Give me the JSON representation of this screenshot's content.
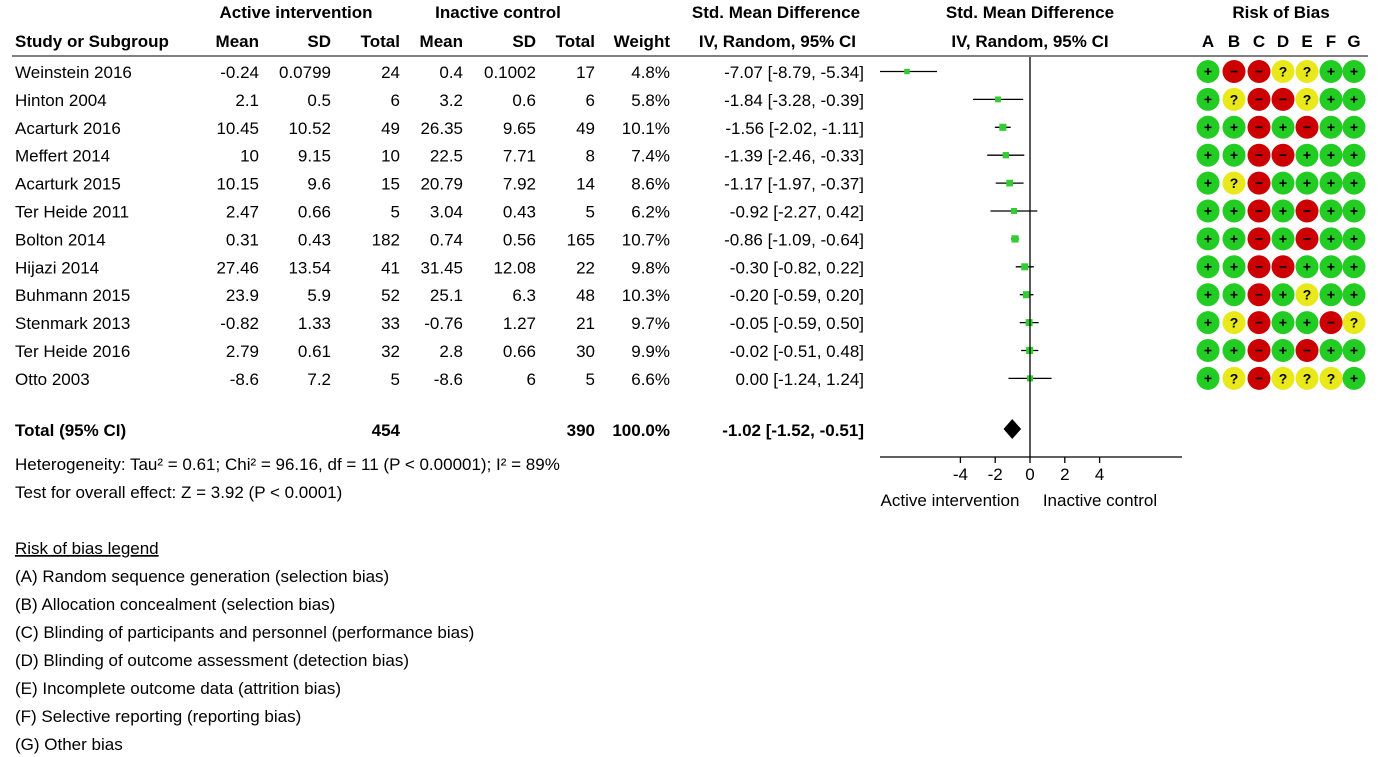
{
  "headers": {
    "group_active": "Active intervention",
    "group_control": "Inactive control",
    "smd_title": "Std. Mean Difference",
    "smd_method": "IV, Random, 95% CI",
    "rob_title": "Risk of Bias",
    "study": "Study or Subgroup",
    "mean": "Mean",
    "sd": "SD",
    "total": "Total",
    "weight": "Weight"
  },
  "rob_domains": [
    "A",
    "B",
    "C",
    "D",
    "E",
    "F",
    "G"
  ],
  "colors": {
    "low": "#22cc22",
    "unclear": "#e8e81a",
    "high": "#cc0000",
    "marker": "#33cc33"
  },
  "chart_data": {
    "type": "forest",
    "xlim": [
      -10,
      10
    ],
    "ticks": [
      "-4",
      "-2",
      "0",
      "2",
      "4"
    ],
    "tick_values": [
      -4,
      -2,
      0,
      2,
      4
    ],
    "xlabel_left": "Active intervention",
    "xlabel_right": "Inactive control",
    "studies": [
      {
        "name": "Weinstein 2016",
        "a_mean": "-0.24",
        "a_sd": "0.0799",
        "a_total": "24",
        "c_mean": "0.4",
        "c_sd": "0.1002",
        "c_total": "17",
        "weight": "4.8%",
        "ci_text": "-7.07 [-8.79, -5.34]",
        "est": -7.07,
        "lo": -8.79,
        "hi": -5.34,
        "w": 4.8,
        "rob": [
          "+",
          "-",
          "-",
          "?",
          "?",
          "+",
          "+"
        ]
      },
      {
        "name": "Hinton 2004",
        "a_mean": "2.1",
        "a_sd": "0.5",
        "a_total": "6",
        "c_mean": "3.2",
        "c_sd": "0.6",
        "c_total": "6",
        "weight": "5.8%",
        "ci_text": "-1.84 [-3.28, -0.39]",
        "est": -1.84,
        "lo": -3.28,
        "hi": -0.39,
        "w": 5.8,
        "rob": [
          "+",
          "?",
          "-",
          "-",
          "?",
          "+",
          "+"
        ]
      },
      {
        "name": "Acarturk 2016",
        "a_mean": "10.45",
        "a_sd": "10.52",
        "a_total": "49",
        "c_mean": "26.35",
        "c_sd": "9.65",
        "c_total": "49",
        "weight": "10.1%",
        "ci_text": "-1.56 [-2.02, -1.11]",
        "est": -1.56,
        "lo": -2.02,
        "hi": -1.11,
        "w": 10.1,
        "rob": [
          "+",
          "+",
          "-",
          "+",
          "-",
          "+",
          "+"
        ]
      },
      {
        "name": "Meffert 2014",
        "a_mean": "10",
        "a_sd": "9.15",
        "a_total": "10",
        "c_mean": "22.5",
        "c_sd": "7.71",
        "c_total": "8",
        "weight": "7.4%",
        "ci_text": "-1.39 [-2.46, -0.33]",
        "est": -1.39,
        "lo": -2.46,
        "hi": -0.33,
        "w": 7.4,
        "rob": [
          "+",
          "+",
          "-",
          "-",
          "+",
          "+",
          "+"
        ]
      },
      {
        "name": "Acarturk 2015",
        "a_mean": "10.15",
        "a_sd": "9.6",
        "a_total": "15",
        "c_mean": "20.79",
        "c_sd": "7.92",
        "c_total": "14",
        "weight": "8.6%",
        "ci_text": "-1.17 [-1.97, -0.37]",
        "est": -1.17,
        "lo": -1.97,
        "hi": -0.37,
        "w": 8.6,
        "rob": [
          "+",
          "?",
          "-",
          "+",
          "+",
          "+",
          "+"
        ]
      },
      {
        "name": "Ter Heide 2011",
        "a_mean": "2.47",
        "a_sd": "0.66",
        "a_total": "5",
        "c_mean": "3.04",
        "c_sd": "0.43",
        "c_total": "5",
        "weight": "6.2%",
        "ci_text": "-0.92 [-2.27, 0.42]",
        "est": -0.92,
        "lo": -2.27,
        "hi": 0.42,
        "w": 6.2,
        "rob": [
          "+",
          "+",
          "-",
          "+",
          "-",
          "+",
          "+"
        ]
      },
      {
        "name": "Bolton 2014",
        "a_mean": "0.31",
        "a_sd": "0.43",
        "a_total": "182",
        "c_mean": "0.74",
        "c_sd": "0.56",
        "c_total": "165",
        "weight": "10.7%",
        "ci_text": "-0.86 [-1.09, -0.64]",
        "est": -0.86,
        "lo": -1.09,
        "hi": -0.64,
        "w": 10.7,
        "rob": [
          "+",
          "+",
          "-",
          "+",
          "-",
          "+",
          "+"
        ]
      },
      {
        "name": "Hijazi 2014",
        "a_mean": "27.46",
        "a_sd": "13.54",
        "a_total": "41",
        "c_mean": "31.45",
        "c_sd": "12.08",
        "c_total": "22",
        "weight": "9.8%",
        "ci_text": "-0.30 [-0.82, 0.22]",
        "est": -0.3,
        "lo": -0.82,
        "hi": 0.22,
        "w": 9.8,
        "rob": [
          "+",
          "+",
          "-",
          "-",
          "+",
          "+",
          "+"
        ]
      },
      {
        "name": "Buhmann 2015",
        "a_mean": "23.9",
        "a_sd": "5.9",
        "a_total": "52",
        "c_mean": "25.1",
        "c_sd": "6.3",
        "c_total": "48",
        "weight": "10.3%",
        "ci_text": "-0.20 [-0.59, 0.20]",
        "est": -0.2,
        "lo": -0.59,
        "hi": 0.2,
        "w": 10.3,
        "rob": [
          "+",
          "+",
          "-",
          "+",
          "?",
          "+",
          "+"
        ]
      },
      {
        "name": "Stenmark 2013",
        "a_mean": "-0.82",
        "a_sd": "1.33",
        "a_total": "33",
        "c_mean": "-0.76",
        "c_sd": "1.27",
        "c_total": "21",
        "weight": "9.7%",
        "ci_text": "-0.05 [-0.59, 0.50]",
        "est": -0.05,
        "lo": -0.59,
        "hi": 0.5,
        "w": 9.7,
        "rob": [
          "+",
          "?",
          "-",
          "+",
          "+",
          "-",
          "?"
        ]
      },
      {
        "name": "Ter Heide 2016",
        "a_mean": "2.79",
        "a_sd": "0.61",
        "a_total": "32",
        "c_mean": "2.8",
        "c_sd": "0.66",
        "c_total": "30",
        "weight": "9.9%",
        "ci_text": "-0.02 [-0.51, 0.48]",
        "est": -0.02,
        "lo": -0.51,
        "hi": 0.48,
        "w": 9.9,
        "rob": [
          "+",
          "+",
          "-",
          "+",
          "-",
          "+",
          "+"
        ]
      },
      {
        "name": "Otto 2003",
        "a_mean": "-8.6",
        "a_sd": "7.2",
        "a_total": "5",
        "c_mean": "-8.6",
        "c_sd": "6",
        "c_total": "5",
        "weight": "6.6%",
        "ci_text": "0.00 [-1.24, 1.24]",
        "est": 0.0,
        "lo": -1.24,
        "hi": 1.24,
        "w": 6.6,
        "rob": [
          "+",
          "?",
          "-",
          "?",
          "?",
          "?",
          "+"
        ]
      }
    ],
    "total": {
      "label": "Total (95% CI)",
      "a_total": "454",
      "c_total": "390",
      "weight": "100.0%",
      "ci_text": "-1.02 [-1.52, -0.51]",
      "est": -1.02,
      "lo": -1.52,
      "hi": -0.51
    },
    "heterogeneity": "Heterogeneity: Tau² = 0.61; Chi² = 96.16, df = 11 (P < 0.00001); I² = 89%",
    "overall_effect": "Test for overall effect: Z = 3.92 (P < 0.0001)"
  },
  "legend": {
    "title": "Risk of bias legend",
    "items": [
      "(A) Random sequence generation (selection bias)",
      "(B) Allocation concealment (selection bias)",
      "(C) Blinding of participants and personnel (performance bias)",
      "(D) Blinding of outcome assessment (detection bias)",
      "(E) Incomplete outcome data (attrition bias)",
      "(F) Selective reporting (reporting bias)",
      "(G) Other bias"
    ]
  }
}
